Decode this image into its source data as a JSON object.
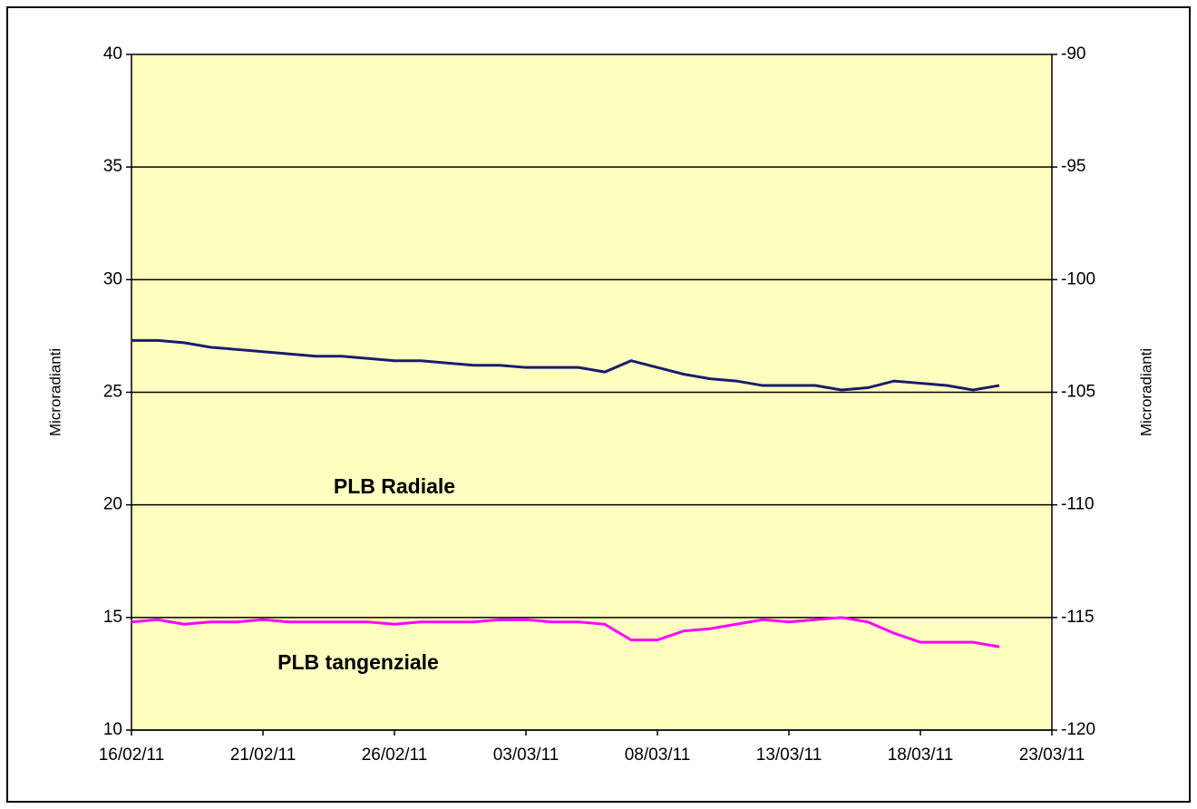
{
  "chart_data": {
    "type": "line",
    "x": [
      "16/02/11",
      "17/02/11",
      "18/02/11",
      "19/02/11",
      "20/02/11",
      "21/02/11",
      "22/02/11",
      "23/02/11",
      "24/02/11",
      "25/02/11",
      "26/02/11",
      "27/02/11",
      "28/02/11",
      "01/03/11",
      "02/03/11",
      "03/03/11",
      "04/03/11",
      "05/03/11",
      "06/03/11",
      "07/03/11",
      "08/03/11",
      "09/03/11",
      "10/03/11",
      "11/03/11",
      "12/03/11",
      "13/03/11",
      "14/03/11",
      "15/03/11",
      "16/03/11",
      "17/03/11",
      "18/03/11",
      "19/03/11",
      "20/03/11",
      "21/03/11"
    ],
    "series": [
      {
        "name": "PLB Radiale",
        "color": "#1b1b6e",
        "values": [
          27.3,
          27.3,
          27.2,
          27.0,
          26.9,
          26.8,
          26.7,
          26.6,
          26.6,
          26.5,
          26.4,
          26.4,
          26.3,
          26.2,
          26.2,
          26.1,
          26.1,
          26.1,
          25.9,
          26.4,
          26.1,
          25.8,
          25.6,
          25.5,
          25.3,
          25.3,
          25.3,
          25.1,
          25.2,
          25.5,
          25.4,
          25.3,
          25.1,
          25.3
        ]
      },
      {
        "name": "PLB tangenziale",
        "color": "#ff00ff",
        "values": [
          14.8,
          14.9,
          14.7,
          14.8,
          14.8,
          14.9,
          14.8,
          14.8,
          14.8,
          14.8,
          14.7,
          14.8,
          14.8,
          14.8,
          14.9,
          14.9,
          14.8,
          14.8,
          14.7,
          14.0,
          14.0,
          14.4,
          14.5,
          14.7,
          14.9,
          14.8,
          14.9,
          15.0,
          14.8,
          14.3,
          13.9,
          13.9,
          13.9,
          13.7
        ]
      }
    ],
    "xlim": [
      "16/02/11",
      "23/03/11"
    ],
    "xticks": [
      "16/02/11",
      "21/02/11",
      "26/02/11",
      "03/03/11",
      "08/03/11",
      "13/03/11",
      "18/03/11",
      "23/03/11"
    ],
    "ylim": [
      10,
      40
    ],
    "yticks": [
      10,
      15,
      20,
      25,
      30,
      35,
      40
    ],
    "y2lim": [
      -120,
      -90
    ],
    "y2ticks": [
      -120,
      -115,
      -110,
      -105,
      -100,
      -95,
      -90
    ],
    "ylabel": "Microradianti",
    "y2label": "Microradianti",
    "grid": true,
    "plot_background": "#ffffc0"
  }
}
